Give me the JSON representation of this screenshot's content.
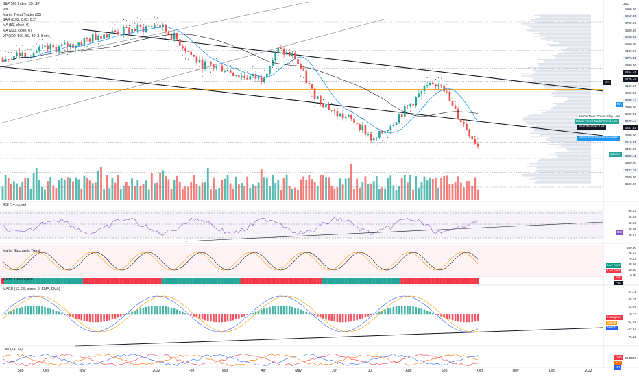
{
  "legend": {
    "title": "S&P 500 Index, 1D, SP",
    "lines": [
      "Vol",
      "Martin Trend Trader (35)",
      "SAR (0.02, 0.02, 0.2)",
      "MA (50, close, 0)",
      "MA (200, close, 0)",
      "VP (500, 500, 50, 30, 2, Both)"
    ]
  },
  "currency": "USD",
  "price_axis": [
    {
      "label": "4900.00",
      "kind": "tick"
    },
    {
      "label": "4819.65",
      "kind": "hl"
    },
    {
      "label": "4700.00",
      "kind": "tick"
    },
    {
      "label": "4600.00",
      "kind": "tick"
    },
    {
      "label": "4549.66",
      "kind": "hl"
    },
    {
      "label": "4500.00",
      "kind": "tick"
    },
    {
      "label": "4400.00",
      "kind": "tick"
    },
    {
      "label": "4376.59",
      "kind": "hl"
    },
    {
      "label": "4300.00",
      "kind": "tick"
    },
    {
      "label": "4254.45",
      "kind": "dark"
    },
    {
      "label": "4175.46",
      "kind": "dark"
    },
    {
      "label": "4100.00",
      "kind": "tick"
    },
    {
      "label": "4000.00",
      "kind": "tick"
    },
    {
      "label": "3938.47",
      "kind": "hl"
    },
    {
      "label": "3900.00",
      "kind": "tick"
    },
    {
      "label": "3800.00",
      "kind": "tick"
    },
    {
      "label": "3670.44",
      "kind": "hl"
    },
    {
      "label": "3637.81",
      "kind": "dark"
    },
    {
      "label": "3600.00",
      "kind": "tick"
    },
    {
      "label": "3516.91",
      "kind": "hl"
    },
    {
      "label": "3400.00",
      "kind": "tick"
    },
    {
      "label": "3383.41",
      "kind": "hl"
    },
    {
      "label": "3300.00",
      "kind": "tick"
    },
    {
      "label": "3242.38",
      "kind": "hl"
    },
    {
      "label": "3200.00",
      "kind": "tick"
    },
    {
      "label": "3100.00",
      "kind": "tick"
    }
  ],
  "price_tags": [
    {
      "label": "MA",
      "color": "#131722"
    },
    {
      "label": "MA",
      "color": "#2196f3"
    },
    {
      "label": "Martin Trend Trader:Stop Loss",
      "color": "#ffffff",
      "text": "#131722"
    },
    {
      "label": "Martin Trend Trader:Trend Line",
      "color": "#26a69a"
    },
    {
      "label": "SAR:ParabolicSAR",
      "color": "#131722"
    },
    {
      "label": "Martin Trend Trader:Live Alert",
      "color": "#2196f3"
    },
    {
      "label": "Volume",
      "color": "#26a69a"
    }
  ],
  "panes": {
    "rsi": {
      "title": "RSI (14, close)",
      "axis": [
        "68.42",
        "60.00",
        "52.68",
        "38.06",
        "28.63"
      ],
      "tag": "RSI"
    },
    "stoch": {
      "title": "Martin Stochastic Trend",
      "axis": [
        "100.00",
        "76.67",
        "76.29",
        "48.08",
        "40.00",
        "0.00"
      ],
      "tags": [
        {
          "label": "Live Alert",
          "color": "#089981"
        },
        {
          "label": "Live Alert",
          "color": "#f23645"
        }
      ]
    },
    "agent": {
      "title": "Martin Trend Agent",
      "tags": [
        {
          "label": "Sell",
          "color": "#f23645"
        },
        {
          "label": "Plot",
          "color": "#131722"
        }
      ]
    },
    "macd": {
      "title": "MACD (12, 26, close, 9, EMA, EMA)",
      "axis": [
        "91.78",
        "55.35",
        "33.08",
        "10.73",
        "-11.45",
        "-43.84",
        "-76.22"
      ],
      "tags": [
        {
          "label": "Histogram",
          "color": "#f23645"
        },
        {
          "label": "Signal",
          "color": "#ff9800"
        },
        {
          "label": "MACD",
          "color": "#2962ff"
        }
      ]
    },
    "dmi": {
      "title": "DMI (14, 14)",
      "axis": [
        "25.0000"
      ],
      "tags": [
        {
          "label": "ADX",
          "color": "#f23645"
        },
        {
          "label": "+DI",
          "color": "#ff6d00"
        },
        {
          "label": "-DI",
          "color": "#2962ff"
        }
      ]
    }
  },
  "time_axis": [
    "Sep",
    "Oct",
    "Nov",
    "2022",
    "Feb",
    "Mar",
    "Apr",
    "May",
    "Jun",
    "Jul",
    "Aug",
    "Sep",
    "Oct",
    "Nov",
    "Dec",
    "2023"
  ]
}
